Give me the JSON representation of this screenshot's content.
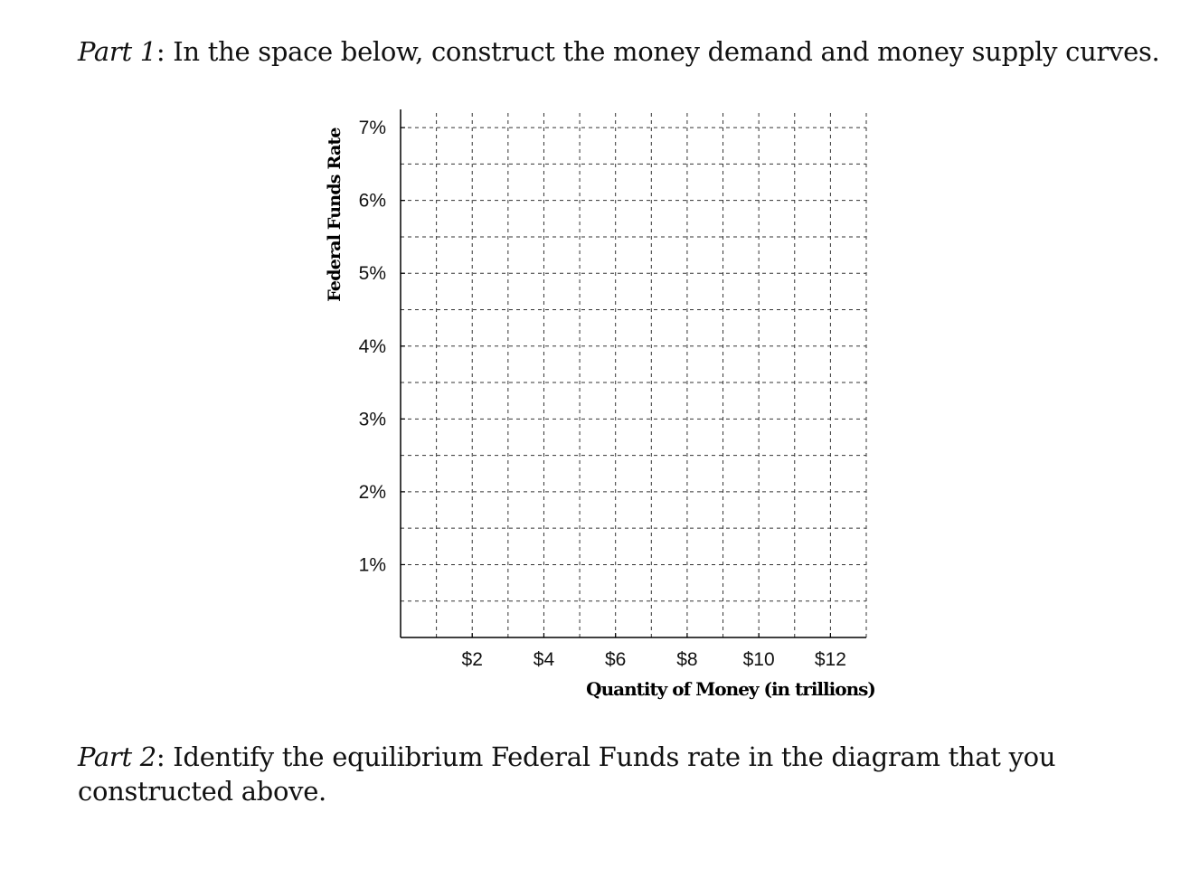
{
  "part1": {
    "label": "Part 1",
    "text": ": In the space below, construct the money demand and money supply curves."
  },
  "part2": {
    "label": "Part 2",
    "text": ": Identify the equilibrium Federal Funds rate in the diagram that you constructed above."
  },
  "chart_data": {
    "type": "line",
    "title": "",
    "ylabel": "Federal Funds Rate",
    "xlabel": "Quantity of Money (in trillions)",
    "x_ticks": [
      {
        "value": 2,
        "label": "$2"
      },
      {
        "value": 4,
        "label": "$4"
      },
      {
        "value": 6,
        "label": "$6"
      },
      {
        "value": 8,
        "label": "$8"
      },
      {
        "value": 10,
        "label": "$10"
      },
      {
        "value": 12,
        "label": "$12"
      }
    ],
    "y_ticks": [
      {
        "value": 1,
        "label": "1%"
      },
      {
        "value": 2,
        "label": "2%"
      },
      {
        "value": 3,
        "label": "3%"
      },
      {
        "value": 4,
        "label": "4%"
      },
      {
        "value": 5,
        "label": "5%"
      },
      {
        "value": 6,
        "label": "6%"
      },
      {
        "value": 7,
        "label": "7%"
      }
    ],
    "xlim": [
      0,
      13
    ],
    "ylim": [
      0,
      7.2
    ],
    "series": [],
    "grid": true,
    "grid_style": "dashed",
    "minor_grid_step_x": 1,
    "minor_grid_step_y": 0.5,
    "axis_color": "#000000",
    "grid_color": "#333333"
  }
}
